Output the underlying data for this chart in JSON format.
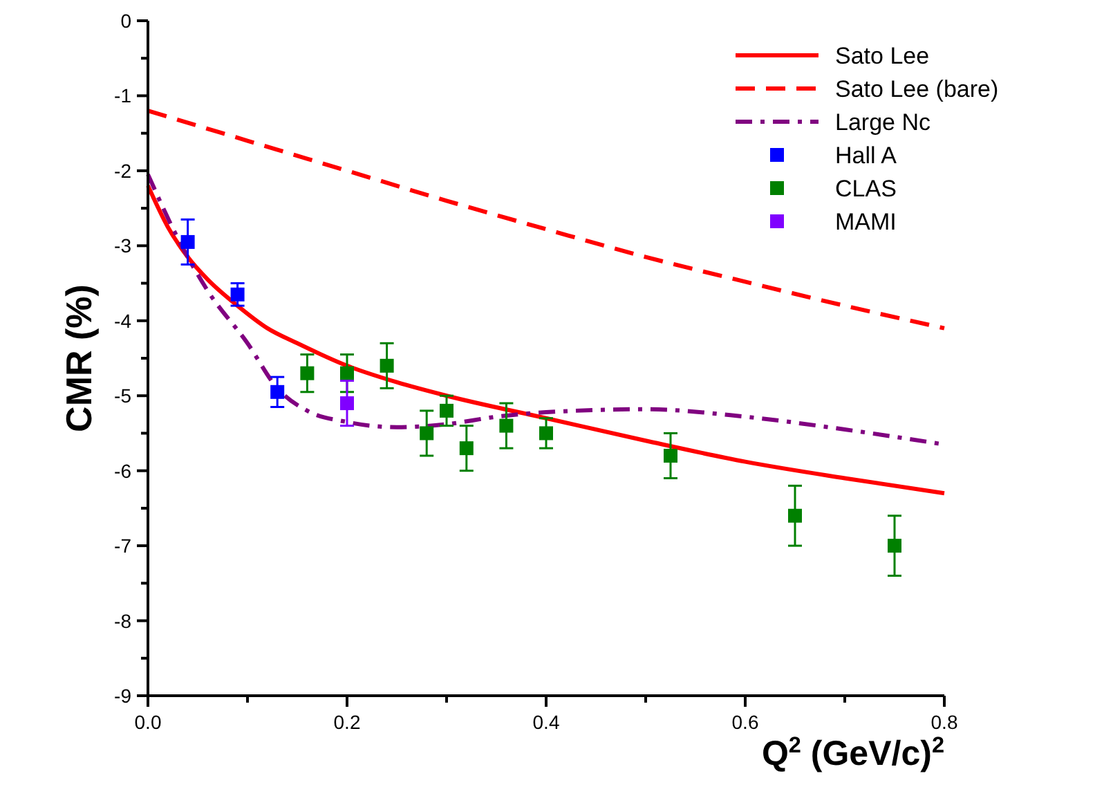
{
  "chart_data": {
    "type": "line",
    "xlabel": "Q$^{2}$ (GeV/c)$^{2}$",
    "ylabel": "CMR (%)",
    "xlim": [
      0,
      0.8
    ],
    "ylim": [
      -9,
      0
    ],
    "xticks": [
      {
        "value": 0,
        "label": "0.0"
      },
      {
        "value": 0.1,
        "label": null
      },
      {
        "value": 0.2,
        "label": "0.2"
      },
      {
        "value": 0.3,
        "label": null
      },
      {
        "value": 0.4,
        "label": "0.4"
      },
      {
        "value": 0.5,
        "label": null
      },
      {
        "value": 0.6,
        "label": "0.6"
      },
      {
        "value": 0.7,
        "label": null
      },
      {
        "value": 0.8,
        "label": "0.8"
      }
    ],
    "yticks": [
      -9,
      {
        "value": -8.5,
        "label": null
      },
      -8,
      {
        "value": -7.5,
        "label": null
      },
      -7,
      {
        "value": -6.5,
        "label": null
      },
      -6,
      {
        "value": -5.5,
        "label": null
      },
      -5,
      {
        "value": -4.5,
        "label": null
      },
      -4,
      {
        "value": -3.5,
        "label": null
      },
      -3,
      {
        "value": -2.5,
        "label": null
      },
      -2,
      {
        "value": -1.5,
        "label": null
      },
      -1,
      {
        "value": -0.5,
        "label": null
      },
      0
    ],
    "grid": false,
    "legend": "top right",
    "series": [
      {
        "name": "Sato Lee",
        "color": "#ff0000",
        "line_style": "solid",
        "x": [
          0,
          0.02,
          0.04,
          0.06,
          0.09,
          0.12,
          0.15,
          0.2,
          0.25,
          0.3,
          0.4,
          0.5,
          0.6,
          0.7,
          0.8
        ],
        "values": [
          -2.2,
          -2.75,
          -3.15,
          -3.45,
          -3.8,
          -4.1,
          -4.3,
          -4.6,
          -4.82,
          -5.0,
          -5.3,
          -5.6,
          -5.88,
          -6.1,
          -6.3
        ]
      },
      {
        "name": "Sato Lee (bare)",
        "color": "#ff0000",
        "line_style": "dashed",
        "x": [
          0,
          0.1,
          0.2,
          0.3,
          0.4,
          0.5,
          0.6,
          0.7,
          0.8
        ],
        "values": [
          -1.2,
          -1.6,
          -2.0,
          -2.4,
          -2.78,
          -3.15,
          -3.48,
          -3.8,
          -4.1
        ]
      },
      {
        "name": "Large Nc",
        "color": "#800080",
        "line_style": "dashdot",
        "x": [
          0,
          0.03,
          0.06,
          0.1,
          0.13,
          0.16,
          0.2,
          0.25,
          0.3,
          0.35,
          0.4,
          0.5,
          0.6,
          0.7,
          0.8
        ],
        "values": [
          -2.05,
          -2.9,
          -3.6,
          -4.3,
          -4.9,
          -5.2,
          -5.35,
          -5.42,
          -5.38,
          -5.28,
          -5.22,
          -5.18,
          -5.28,
          -5.45,
          -5.65
        ]
      },
      {
        "name": "Hall A",
        "type": "scatter",
        "color": "#0000ff",
        "marker": "square",
        "x": [
          0.04,
          0.09,
          0.13
        ],
        "values": [
          -2.95,
          -3.65,
          -4.95
        ],
        "errors": [
          0.3,
          0.15,
          0.2
        ]
      },
      {
        "name": "CLAS",
        "type": "scatter",
        "color": "#008000",
        "marker": "square",
        "x": [
          0.16,
          0.2,
          0.24,
          0.28,
          0.3,
          0.32,
          0.36,
          0.4,
          0.525,
          0.65,
          0.75
        ],
        "values": [
          -4.7,
          -4.7,
          -4.6,
          -5.5,
          -5.2,
          -5.7,
          -5.4,
          -5.5,
          -5.8,
          -6.6,
          -7.0
        ],
        "errors": [
          0.25,
          0.25,
          0.3,
          0.3,
          0.2,
          0.3,
          0.3,
          0.2,
          0.3,
          0.4,
          0.4
        ]
      },
      {
        "name": "MAMI",
        "type": "scatter",
        "color": "#8000ff",
        "marker": "square",
        "x": [
          0.2
        ],
        "values": [
          -5.1
        ],
        "errors": [
          0.3
        ]
      }
    ]
  }
}
